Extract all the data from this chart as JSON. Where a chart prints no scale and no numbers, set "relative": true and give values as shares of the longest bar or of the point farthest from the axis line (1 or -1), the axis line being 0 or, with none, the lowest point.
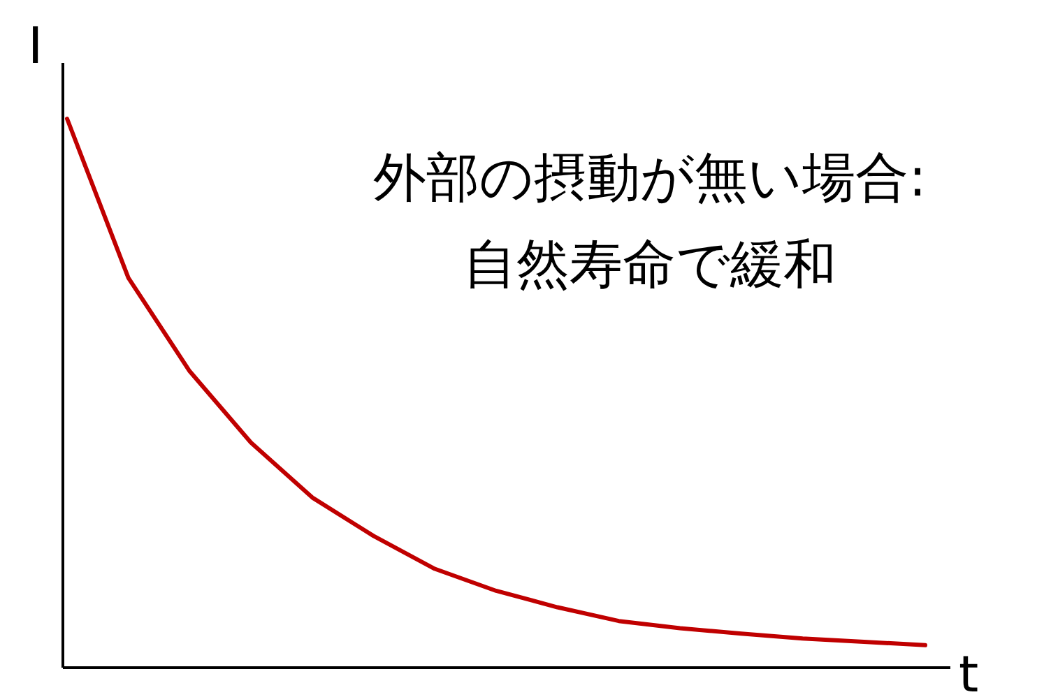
{
  "chart_data": {
    "type": "line",
    "relative": true,
    "xlabel": "t",
    "ylabel": "I",
    "categories": [
      null,
      null,
      null,
      null,
      null,
      null,
      null,
      null,
      null,
      null,
      null,
      null,
      null,
      null,
      null
    ],
    "series": [
      {
        "color": "#c00000",
        "values": [
          1.0,
          0.71,
          0.54,
          0.41,
          0.31,
          0.24,
          0.18,
          0.14,
          0.11,
          0.085,
          0.072,
          0.062,
          0.053,
          0.047,
          0.041
        ]
      }
    ],
    "annotations": [
      "外部の摂動が無い場合:",
      "自然寿命で緩和"
    ]
  }
}
